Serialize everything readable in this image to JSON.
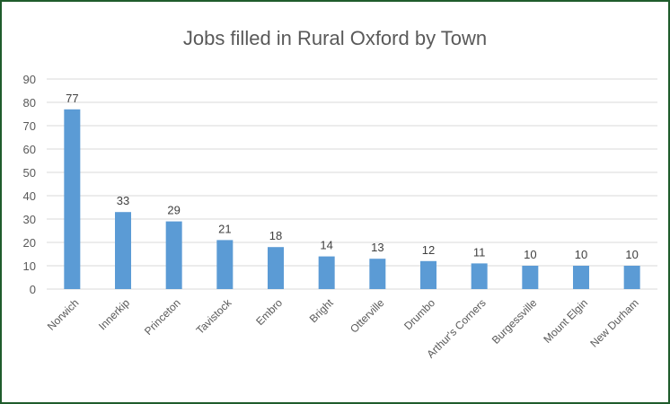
{
  "chart_data": {
    "type": "bar",
    "title": "Jobs filled in Rural Oxford by Town",
    "categories": [
      "Norwich",
      "Innerkip",
      "Princeton",
      "Tavistock",
      "Embro",
      "Bright",
      "Otterville",
      "Drumbo",
      "Arthur's Corners",
      "Burgessville",
      "Mount Elgin",
      "New Durham"
    ],
    "values": [
      77,
      33,
      29,
      21,
      18,
      14,
      13,
      12,
      11,
      10,
      10,
      10
    ],
    "ylim": [
      0,
      90
    ],
    "yticks": [
      0,
      10,
      20,
      30,
      40,
      50,
      60,
      70,
      80,
      90
    ],
    "grid": true,
    "legend": "none",
    "colors": {
      "bar": "#5b9bd5",
      "grid": "#d9d9d9",
      "frame": "#1f5c2c"
    }
  }
}
